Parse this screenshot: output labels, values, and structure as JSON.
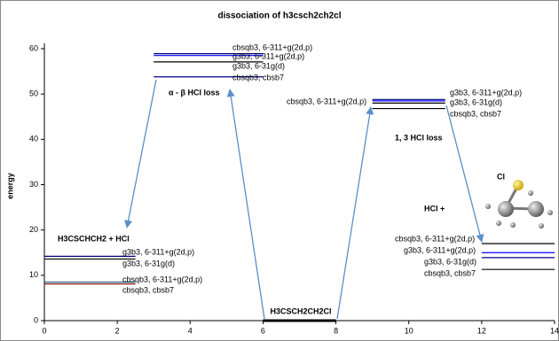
{
  "chart_data": {
    "type": "energy-level",
    "title": "dissociation of h3csch2ch2cl",
    "y_label": "energy",
    "xlim": [
      0,
      14
    ],
    "xticks": [
      0,
      2,
      4,
      6,
      8,
      10,
      12,
      14
    ],
    "ylim": [
      0,
      60
    ],
    "yticks": [
      0,
      10,
      20,
      30,
      40,
      50,
      60
    ],
    "levels": [
      {
        "label": "g3b3, 6-311+g(2d,p)",
        "value": 14.2,
        "x": [
          0,
          2.5
        ],
        "color": "#000080"
      },
      {
        "label": "g3b3, 6-31g(d)",
        "value": 13.6,
        "x": [
          0,
          2.5
        ],
        "color": "#000000"
      },
      {
        "label": "cbsqb3, 6-311+g(2d,p)",
        "value": 8.5,
        "x": [
          0,
          2.5
        ],
        "color": "#1f5f7f"
      },
      {
        "label": "cbsqb3, cbsb7",
        "value": 8.1,
        "x": [
          0,
          2.5
        ],
        "color": "#8b0000"
      },
      {
        "label": "cbsqb3, 6-311+g(2d,p)",
        "value": 58.9,
        "x": [
          3,
          6
        ],
        "color": "#000080"
      },
      {
        "label": "g3b3, 6-311+g(2d,p)",
        "value": 58.5,
        "x": [
          3,
          6
        ],
        "color": "#0000ff"
      },
      {
        "label": "g3b3, 6-31g(d)",
        "value": 57.1,
        "x": [
          3,
          6
        ],
        "color": "#000000"
      },
      {
        "label": "cbsqb3, cbsb7",
        "value": 53.8,
        "x": [
          3,
          6
        ],
        "color": "#000080"
      },
      {
        "label": "H3CSCH2CH2Cl",
        "value": 0,
        "x": [
          6,
          8
        ],
        "color": "#000000"
      },
      {
        "label": "cbsqb3, 6-311+g(2d,p)",
        "value": 48.8,
        "x": [
          9,
          11
        ],
        "color": "#000080"
      },
      {
        "label": "g3b3, 6-311+g(2d,p)",
        "value": 48.5,
        "x": [
          9,
          11
        ],
        "color": "#0000ff"
      },
      {
        "label": "g3b3, 6-31g(d)",
        "value": 48.0,
        "x": [
          9,
          11
        ],
        "color": "#000000"
      },
      {
        "label": "cbsqb3, cbsb7",
        "value": 46.8,
        "x": [
          9,
          11
        ],
        "color": "#000000"
      },
      {
        "label": "cbsqb3, 6-311+g(2d,p)",
        "value": 17.0,
        "x": [
          12,
          14
        ],
        "color": "#000000"
      },
      {
        "label": "g3b3, 6-311+g(2d,p)",
        "value": 15.0,
        "x": [
          12,
          14
        ],
        "color": "#0000ff"
      },
      {
        "label": "g3b3, 6-31g(d)",
        "value": 13.9,
        "x": [
          12,
          14
        ],
        "color": "#000080"
      },
      {
        "label": "cbsqb3, cbsb7",
        "value": 11.3,
        "x": [
          12,
          14
        ],
        "color": "#000000"
      }
    ],
    "annotations": [
      "H3CSCHCH2 + HCl",
      "α - β HCl loss",
      "1, 3 HCl loss",
      "HCl +",
      "Cl"
    ]
  }
}
